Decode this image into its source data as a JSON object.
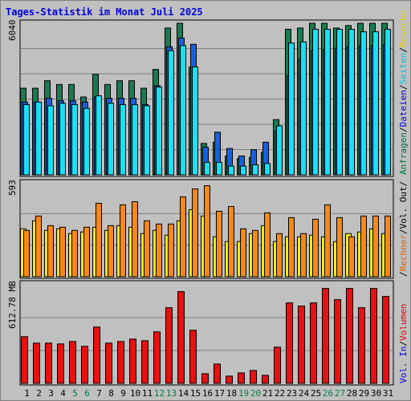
{
  "title": "Tages-Statistik im Monat Juli 2025",
  "panels": {
    "top": {
      "max_label": "6040"
    },
    "mid": {
      "max_label": "593"
    },
    "bot": {
      "max_label": "612.78 MB"
    }
  },
  "legend": {
    "top": [
      {
        "text": "Anfragen",
        "color": "#007040"
      },
      {
        "text": "/",
        "color": "#000000"
      },
      {
        "text": "Dateien",
        "color": "#0000e0"
      },
      {
        "text": "/",
        "color": "#000000"
      },
      {
        "text": "Seiten",
        "color": "#00c0e0"
      },
      {
        "text": "/",
        "color": "#000000"
      },
      {
        "text": "Besuche",
        "color": "#e0d000"
      }
    ],
    "mid": [
      {
        "text": "/",
        "color": "#000000"
      },
      {
        "text": "Rechner",
        "color": "#e06000"
      },
      {
        "text": "/",
        "color": "#000000"
      },
      {
        "text": "Vol. Out",
        "color": "#000000"
      },
      {
        "text": "/",
        "color": "#000000"
      }
    ],
    "bot": [
      {
        "text": "Vol. In",
        "color": "#0000e0"
      },
      {
        "text": "/",
        "color": "#000000"
      },
      {
        "text": "Volumen",
        "color": "#e00000"
      }
    ]
  },
  "colors": {
    "background": "#c0c0c0",
    "title": "#0000e0",
    "hits": "#1a7a50",
    "files": "#1560e0",
    "pages": "#18e0f8",
    "visits": "#f8e818",
    "sites": "#f88818",
    "volume": "#e81010",
    "weekend_label": "#008040",
    "weekday_label": "#000000"
  },
  "chart_data": {
    "type": "bar",
    "categories": [
      "1",
      "2",
      "3",
      "4",
      "5",
      "6",
      "7",
      "8",
      "9",
      "10",
      "11",
      "12",
      "13",
      "14",
      "15",
      "16",
      "17",
      "18",
      "19",
      "20",
      "21",
      "22",
      "23",
      "24",
      "25",
      "26",
      "27",
      "28",
      "29",
      "30",
      "31"
    ],
    "weekend_days": [
      5,
      6,
      12,
      13,
      19,
      20,
      26,
      27
    ],
    "panels": [
      {
        "name": "top",
        "ylim": [
          0,
          6040
        ],
        "series": [
          {
            "name": "Anfragen",
            "values": [
              3450,
              3450,
              3750,
              3600,
              3600,
              3100,
              4000,
              3600,
              3750,
              3750,
              3450,
              4200,
              5850,
              6040,
              4300,
              1250,
              1300,
              750,
              650,
              700,
              900,
              2200,
              5800,
              5850,
              6040,
              6040,
              5850,
              5950,
              6040,
              6040,
              6040
            ]
          },
          {
            "name": "Dateien",
            "values": [
              2900,
              2900,
              3050,
              2950,
              2950,
              2900,
              3100,
              3050,
              3050,
              3050,
              2800,
              3550,
              5100,
              5450,
              5200,
              1100,
              1700,
              1050,
              750,
              1000,
              1300,
              1750,
              3950,
              4600,
              4950,
              5000,
              5050,
              5100,
              5150,
              5150,
              5200
            ]
          },
          {
            "name": "Seiten",
            "values": [
              2800,
              2900,
              2750,
              2850,
              2800,
              2650,
              3150,
              2850,
              2800,
              2800,
              2750,
              3500,
              4950,
              5150,
              4300,
              500,
              500,
              350,
              350,
              400,
              450,
              1950,
              5250,
              5300,
              5800,
              5800,
              5800,
              5800,
              5700,
              5700,
              5800
            ]
          }
        ]
      },
      {
        "name": "mid",
        "ylim": [
          0,
          593
        ],
        "series": [
          {
            "name": "Besuche",
            "values": [
              300,
              350,
              290,
              300,
              270,
              280,
              310,
              290,
              320,
              310,
              270,
              290,
              260,
              350,
              420,
              380,
              250,
              220,
              220,
              270,
              320,
              220,
              250,
              250,
              260,
              250,
              220,
              270,
              280,
              300,
              270
            ]
          },
          {
            "name": "Rechner",
            "values": [
              290,
              380,
              320,
              310,
              290,
              310,
              460,
              320,
              450,
              470,
              350,
              330,
              330,
              500,
              550,
              570,
              410,
              440,
              300,
              290,
              400,
              270,
              370,
              270,
              360,
              450,
              370,
              250,
              380,
              380,
              380
            ]
          }
        ]
      },
      {
        "name": "bot",
        "ylim": [
          0,
          612.78
        ],
        "series": [
          {
            "name": "Volumen",
            "values": [
              290,
              250,
              250,
              245,
              260,
              230,
              350,
              250,
              260,
              275,
              265,
              320,
              470,
              570,
              330,
              60,
              120,
              45,
              65,
              80,
              50,
              225,
              500,
              480,
              500,
              590,
              520,
              590,
              470,
              590,
              540
            ]
          }
        ]
      }
    ]
  }
}
